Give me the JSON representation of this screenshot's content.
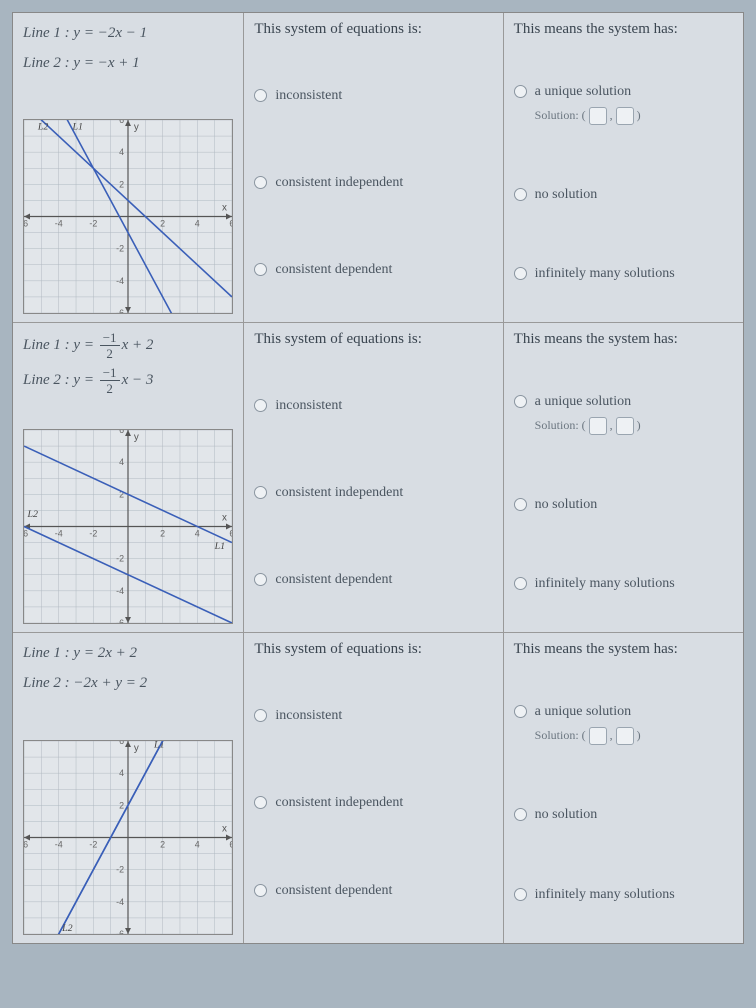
{
  "labels": {
    "sys_header": "This system of equations is:",
    "mean_header": "This means the system has:",
    "opt_inconsistent": "inconsistent",
    "opt_cons_ind": "consistent independent",
    "opt_cons_dep": "consistent dependent",
    "opt_unique": "a unique solution",
    "opt_nosol": "no solution",
    "opt_inf": "infinitely many solutions",
    "solution_word": "Solution:",
    "line1_lbl": "Line 1 :",
    "line2_lbl": "Line 2 :"
  },
  "palette": {
    "grid": "#b0b8c0",
    "axis": "#555",
    "line": "#3a5fb8",
    "bg": "#e2e6ea"
  },
  "graph": {
    "xlim": [
      -6,
      6
    ],
    "ylim": [
      -6,
      6
    ],
    "ticks": [
      -6,
      -4,
      -2,
      2,
      4,
      6
    ]
  },
  "rows": [
    {
      "eq1_plain": "y = −2x − 1",
      "eq2_plain": "y = −x + 1",
      "uses_frac": false,
      "lines": [
        {
          "label": "L1",
          "m": -2,
          "b": -1,
          "label_x": -3.2,
          "label_y": 5.4
        },
        {
          "label": "L2",
          "m": -1,
          "b": 1,
          "label_x": -5.2,
          "label_y": 5.4
        }
      ]
    },
    {
      "uses_frac": true,
      "eq1_frac": {
        "num": "−1",
        "den": "2",
        "tail": "x + 2"
      },
      "eq2_frac": {
        "num": "−1",
        "den": "2",
        "tail": "x − 3"
      },
      "lines": [
        {
          "label": "L1",
          "m": -0.5,
          "b": 2,
          "label_x": 5.0,
          "label_y": -1.4
        },
        {
          "label": "L2",
          "m": -0.5,
          "b": -3,
          "label_x": -5.8,
          "label_y": 0.6
        }
      ]
    },
    {
      "eq1_plain": "y = 2x + 2",
      "eq2_plain": "−2x + y = 2",
      "uses_frac": false,
      "lines": [
        {
          "label": "L1",
          "m": 2,
          "b": 2,
          "label_x": 1.5,
          "label_y": 5.6
        },
        {
          "label": "L2",
          "m": 2,
          "b": 2,
          "label_x": -3.8,
          "label_y": -5.8
        }
      ]
    }
  ]
}
